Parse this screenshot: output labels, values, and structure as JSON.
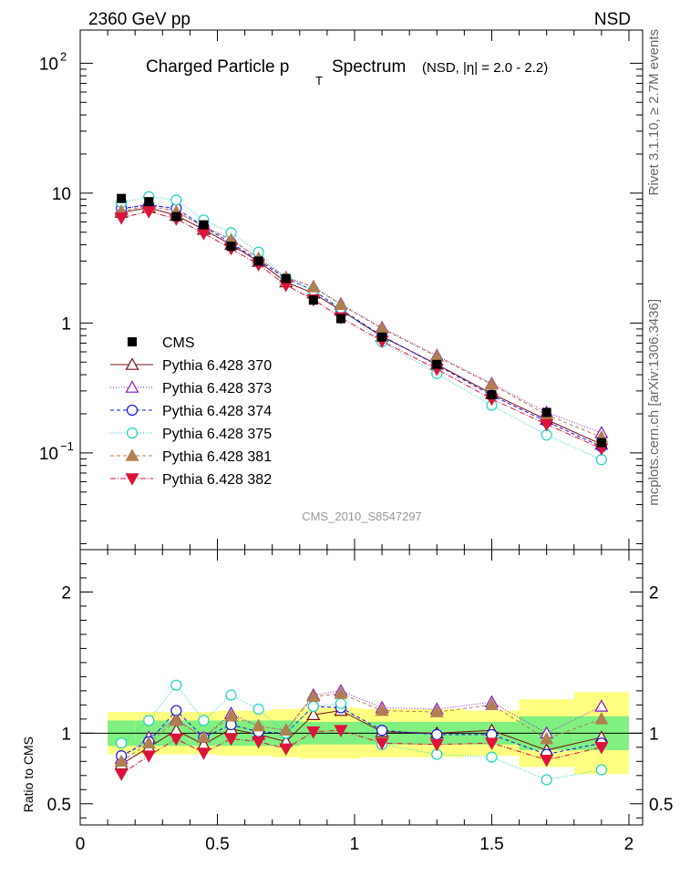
{
  "header": {
    "left": "2360 GeV pp",
    "right": "NSD",
    "side_top": "Rivet 3.1.10, ≥ 2.7M events",
    "side_bottom": "mcplots.cern.ch [arXiv:1306.3436]"
  },
  "chart_data": {
    "type": "scatter",
    "title": "Charged Particle p_T Spectrum",
    "title_main": "Charged Particle p",
    "title_sub": "T",
    "title_tail": "Spectrum",
    "title_note": "(NSD, |η| = 2.0 - 2.2)",
    "watermark": "CMS_2010_S8547297",
    "x": [
      0.15,
      0.25,
      0.35,
      0.45,
      0.55,
      0.65,
      0.75,
      0.85,
      0.95,
      1.1,
      1.3,
      1.5,
      1.7,
      1.9
    ],
    "xlim": [
      0,
      2.05
    ],
    "upper": {
      "ylim": [
        0.018,
        180
      ],
      "yscale": "log",
      "yticks": [
        {
          "v": 0.1,
          "base": "10",
          "exp": "−1"
        },
        {
          "v": 1,
          "base": "1",
          "exp": ""
        },
        {
          "v": 10,
          "base": "10",
          "exp": ""
        },
        {
          "v": 100,
          "base": "10",
          "exp": "2"
        }
      ]
    },
    "lower": {
      "ylabel": "Ratio to CMS",
      "ylim": [
        0.35,
        2.3
      ],
      "yticks": [
        "0.5",
        "1",
        "2"
      ],
      "ytick_values": [
        0.5,
        1,
        2
      ]
    },
    "xticks": [
      "0",
      "0.5",
      "1",
      "1.5",
      "2"
    ],
    "xtick_values": [
      0,
      0.5,
      1,
      1.5,
      2
    ],
    "data": {
      "name": "CMS",
      "values": [
        9.1,
        8.6,
        6.6,
        5.7,
        3.9,
        3.0,
        2.2,
        1.5,
        1.08,
        0.78,
        0.48,
        0.28,
        0.205,
        0.12
      ],
      "band_inner": [
        0.09,
        0.09,
        0.09,
        0.09,
        0.09,
        0.09,
        0.09,
        0.08,
        0.08,
        0.08,
        0.08,
        0.08,
        0.12,
        0.12
      ],
      "band_outer": [
        0.15,
        0.15,
        0.15,
        0.15,
        0.16,
        0.16,
        0.17,
        0.18,
        0.18,
        0.17,
        0.17,
        0.16,
        0.24,
        0.29
      ],
      "color": "#000000"
    },
    "series": [
      {
        "name": "Pythia 6.428 370",
        "color": "#7a0f14",
        "dash": "",
        "marker": "triangle-open",
        "ratio": [
          0.78,
          0.9,
          1.02,
          0.92,
          1.03,
          0.99,
          0.94,
          1.13,
          1.16,
          1.01,
          1.0,
          1.02,
          0.88,
          0.97
        ]
      },
      {
        "name": "Pythia 6.428 373",
        "color": "#8a17c2",
        "dash": "1,2",
        "marker": "triangle-open",
        "ratio": [
          0.82,
          0.97,
          1.1,
          0.97,
          1.14,
          1.05,
          1.02,
          1.27,
          1.3,
          1.18,
          1.17,
          1.22,
          1.0,
          1.19
        ]
      },
      {
        "name": "Pythia 6.428 374",
        "color": "#1515e6",
        "dash": "4,3",
        "marker": "circle-open",
        "ratio": [
          0.84,
          0.94,
          1.16,
          0.97,
          1.06,
          1.01,
          1.0,
          1.19,
          1.18,
          1.02,
          0.99,
          0.99,
          0.85,
          0.93
        ]
      },
      {
        "name": "Pythia 6.428 375",
        "color": "#19d2c2",
        "dash": "1,2",
        "marker": "circle-open",
        "ratio": [
          0.93,
          1.09,
          1.34,
          1.09,
          1.27,
          1.17,
          1.0,
          1.19,
          1.21,
          0.92,
          0.85,
          0.83,
          0.67,
          0.74
        ]
      },
      {
        "name": "Pythia 6.428 381",
        "color": "#b08050",
        "dash": "4,3",
        "marker": "triangle-filled",
        "ratio": [
          0.8,
          0.93,
          1.09,
          0.97,
          1.12,
          1.05,
          1.02,
          1.26,
          1.28,
          1.16,
          1.15,
          1.2,
          0.96,
          1.1
        ]
      },
      {
        "name": "Pythia 6.428 382",
        "color": "#dc143c",
        "dash": "6,2,1,2",
        "marker": "triangle-down-filled",
        "ratio": [
          0.71,
          0.84,
          0.96,
          0.86,
          0.96,
          0.94,
          0.89,
          1.01,
          1.02,
          0.93,
          0.92,
          0.93,
          0.81,
          0.9
        ]
      }
    ]
  }
}
